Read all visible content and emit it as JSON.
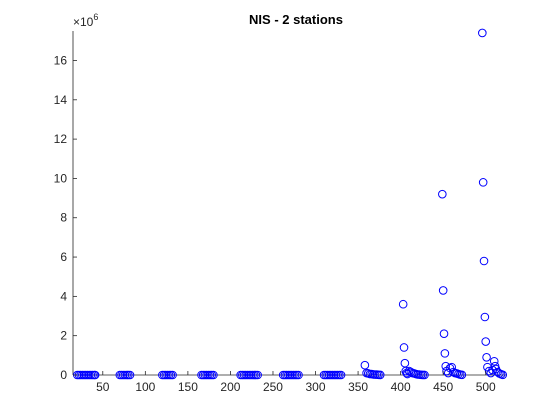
{
  "chart_data": {
    "type": "scatter",
    "title": "NIS - 2 stations",
    "xlabel": "",
    "ylabel": "",
    "xlim": [
      15,
      525
    ],
    "ylim": [
      0,
      17500000
    ],
    "xticks": [
      50,
      100,
      150,
      200,
      250,
      300,
      350,
      400,
      450,
      500
    ],
    "yticks": [
      0,
      2000000,
      4000000,
      6000000,
      8000000,
      10000000,
      12000000,
      14000000,
      16000000
    ],
    "ytick_labels": [
      "0",
      "2",
      "4",
      "6",
      "8",
      "10",
      "12",
      "14",
      "16"
    ],
    "y_exponent_label": {
      "base": "×10",
      "exponent": "6"
    },
    "grid": false,
    "marker": "open-circle",
    "marker_color": "#0000ff",
    "series": [
      {
        "x": [
          20,
          22,
          24,
          26,
          28,
          30,
          32,
          34,
          36,
          38,
          40,
          41,
          70,
          72,
          74,
          76,
          78,
          80,
          82,
          120,
          122,
          124,
          126,
          128,
          130,
          132,
          166,
          168,
          170,
          172,
          174,
          176,
          178,
          180,
          212,
          214,
          216,
          218,
          220,
          222,
          224,
          226,
          228,
          230,
          232,
          262,
          264,
          266,
          268,
          270,
          272,
          274,
          276,
          278,
          280,
          310,
          312,
          314,
          316,
          318,
          320,
          322,
          324,
          326,
          328,
          330,
          358,
          360,
          362,
          364,
          366,
          368,
          370,
          372,
          374,
          376,
          403,
          404,
          405,
          406,
          407,
          408,
          410,
          412,
          414,
          416,
          418,
          420,
          422,
          424,
          426,
          428,
          449,
          450,
          451,
          452,
          453,
          454,
          456,
          458,
          460,
          462,
          464,
          466,
          468,
          470,
          472,
          496,
          497,
          498,
          499,
          500,
          501,
          502,
          504,
          506,
          508,
          510,
          511,
          512,
          514,
          516,
          518,
          520
        ],
        "y": [
          0,
          0,
          0,
          0,
          0,
          0,
          0,
          0,
          0,
          0,
          0,
          0,
          0,
          0,
          0,
          0,
          0,
          0,
          0,
          0,
          0,
          0,
          0,
          0,
          0,
          0,
          0,
          0,
          0,
          0,
          0,
          0,
          0,
          0,
          0,
          0,
          0,
          0,
          0,
          0,
          0,
          0,
          0,
          0,
          0,
          0,
          0,
          0,
          0,
          0,
          0,
          0,
          0,
          0,
          0,
          0,
          0,
          0,
          0,
          0,
          0,
          0,
          0,
          0,
          0,
          0,
          500000,
          100000,
          80000,
          50000,
          50000,
          30000,
          20000,
          20000,
          10000,
          5000,
          3600000,
          1400000,
          600000,
          200000,
          100000,
          50000,
          200000,
          150000,
          100000,
          80000,
          50000,
          30000,
          20000,
          10000,
          5000,
          2000,
          9200000,
          4300000,
          2100000,
          1100000,
          450000,
          200000,
          100000,
          350000,
          400000,
          150000,
          100000,
          80000,
          50000,
          20000,
          10000,
          17400000,
          9800000,
          5800000,
          2950000,
          1700000,
          900000,
          400000,
          200000,
          100000,
          250000,
          700000,
          450000,
          300000,
          150000,
          80000,
          40000,
          10000
        ]
      }
    ]
  }
}
